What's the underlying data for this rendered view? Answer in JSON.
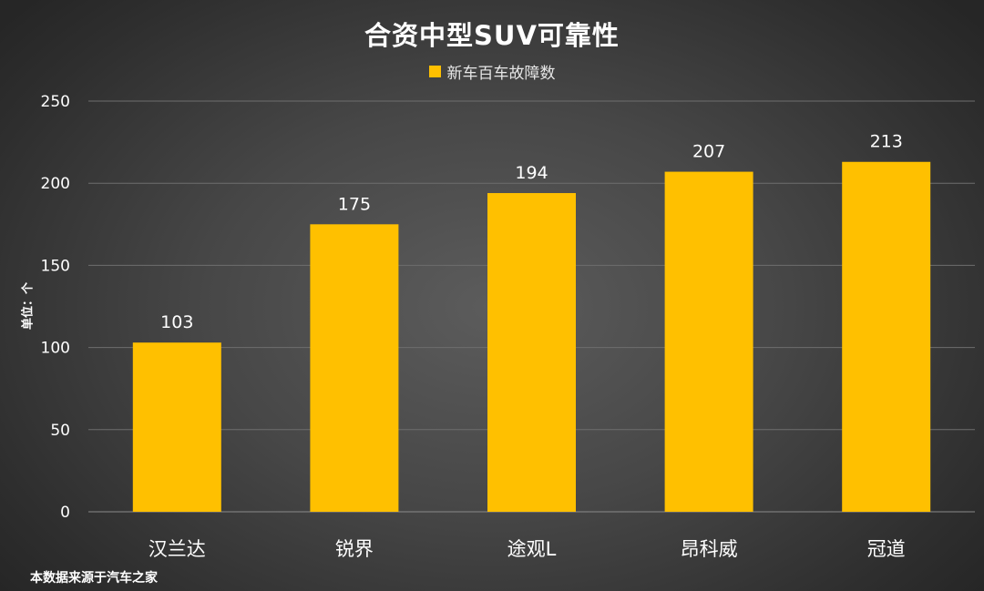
{
  "chart_data": {
    "type": "bar",
    "title": "合资中型SUV可靠性",
    "ylabel": "单位：个",
    "xlabel": "",
    "categories": [
      "汉兰达",
      "锐界",
      "途观L",
      "昂科威",
      "冠道"
    ],
    "series": [
      {
        "name": "新车百车故障数",
        "values": [
          103,
          175,
          194,
          207,
          213
        ],
        "color": "#ffc000"
      }
    ],
    "ylim": [
      0,
      250
    ],
    "yticks": [
      0,
      50,
      100,
      150,
      200,
      250
    ],
    "grid": true,
    "legend_position": "top-center",
    "data_labels": true
  },
  "source_note": "本数据来源于汽车之家",
  "colors": {
    "bar": "#ffc000",
    "gridline": "#6e6e6e",
    "text": "#ffffff"
  }
}
